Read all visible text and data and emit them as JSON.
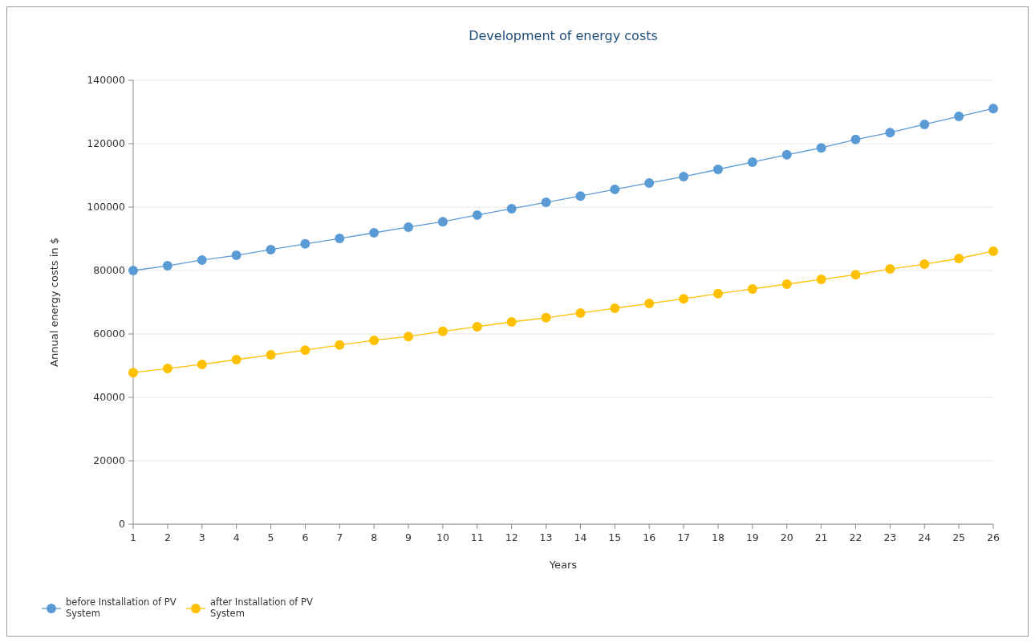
{
  "chart_data": {
    "type": "line",
    "title": "Development of energy costs",
    "xlabel": "Years",
    "ylabel": "Annual energy costs in $",
    "x": [
      1,
      2,
      3,
      4,
      5,
      6,
      7,
      8,
      9,
      10,
      11,
      12,
      13,
      14,
      15,
      16,
      17,
      18,
      19,
      20,
      21,
      22,
      23,
      24,
      25,
      26
    ],
    "xlim": [
      1,
      26
    ],
    "xticks": [
      1,
      2,
      3,
      4,
      5,
      6,
      7,
      8,
      9,
      10,
      11,
      12,
      13,
      14,
      15,
      16,
      17,
      18,
      19,
      20,
      21,
      22,
      23,
      24,
      25,
      26
    ],
    "ylim": [
      0,
      140000
    ],
    "yticks": [
      0,
      20000,
      40000,
      60000,
      80000,
      100000,
      120000,
      140000
    ],
    "grid": "y",
    "legend": "bottom left",
    "marker": "circle",
    "series": [
      {
        "name": "before Installation of PV System",
        "color": "#5b9bd5",
        "values": [
          80000,
          81500,
          83300,
          84800,
          86600,
          88400,
          90100,
          91900,
          93700,
          95400,
          97500,
          99500,
          101500,
          103500,
          105600,
          107600,
          109600,
          111900,
          114200,
          116500,
          118700,
          121300,
          123500,
          126100,
          128600,
          131100
        ]
      },
      {
        "name": "after Installation of PV System",
        "color": "#ffc000",
        "values": [
          47800,
          49100,
          50400,
          51900,
          53400,
          54900,
          56500,
          58000,
          59200,
          60800,
          62300,
          63800,
          65100,
          66600,
          68100,
          69600,
          71100,
          72700,
          74200,
          75700,
          77200,
          78700,
          80500,
          82000,
          83800,
          86100
        ]
      }
    ]
  }
}
